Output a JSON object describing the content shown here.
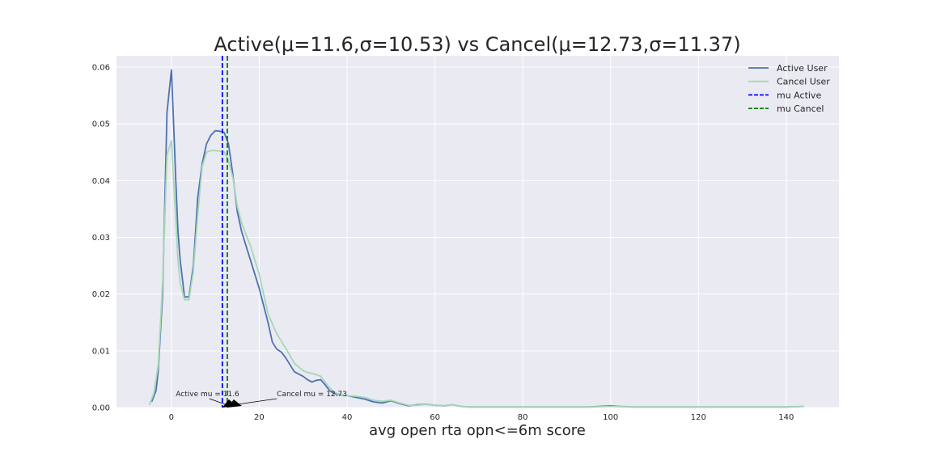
{
  "chart_data": {
    "type": "line",
    "title": "Active(μ=11.6,σ=10.53) vs Cancel(μ=12.73,σ=11.37)",
    "xlabel": "avg open rta opn<=6m score",
    "ylabel": "",
    "xlim": [
      -12.5,
      152
    ],
    "ylim": [
      0,
      0.062
    ],
    "xticks": [
      0,
      20,
      40,
      60,
      80,
      100,
      120,
      140
    ],
    "yticks": [
      0.0,
      0.01,
      0.02,
      0.03,
      0.04,
      0.05,
      0.06
    ],
    "grid": true,
    "legend_position": "top-right",
    "series": [
      {
        "name": "Active User",
        "color": "#4c72b0",
        "style": "solid",
        "x": [
          -4.5,
          -3.5,
          -3,
          -2,
          -1,
          0,
          0.5,
          1,
          1.5,
          2,
          3,
          4,
          5,
          6,
          7,
          8,
          9,
          10,
          11,
          12,
          13,
          14,
          15,
          16,
          17,
          18,
          20,
          22,
          23,
          24,
          25,
          26,
          28,
          30,
          31,
          32,
          33,
          34,
          35,
          36,
          37,
          38,
          40,
          42,
          44,
          46,
          48,
          50,
          52,
          54,
          56,
          58,
          60,
          62,
          64,
          66,
          68,
          70,
          75,
          80,
          85,
          90,
          95,
          100,
          102,
          105,
          110,
          115,
          120,
          125,
          130,
          135,
          140,
          144
        ],
        "y": [
          0.001,
          0.003,
          0.0065,
          0.02,
          0.052,
          0.0595,
          0.05,
          0.04,
          0.031,
          0.026,
          0.0195,
          0.0195,
          0.025,
          0.037,
          0.043,
          0.0465,
          0.048,
          0.0488,
          0.0487,
          0.0485,
          0.0465,
          0.041,
          0.0345,
          0.031,
          0.0285,
          0.026,
          0.021,
          0.015,
          0.0115,
          0.0103,
          0.0098,
          0.0088,
          0.0063,
          0.0055,
          0.0049,
          0.0045,
          0.0048,
          0.0049,
          0.004,
          0.003,
          0.0025,
          0.0023,
          0.0021,
          0.0018,
          0.0015,
          0.001,
          0.0008,
          0.0012,
          0.0007,
          0.0003,
          0.0005,
          0.0006,
          0.0004,
          0.0003,
          0.0005,
          0.0002,
          0.0001,
          0.0001,
          0.0001,
          0.0001,
          0.0001,
          0.0001,
          0.0001,
          0.0003,
          0.0002,
          0.0001,
          0.0001,
          0.0001,
          0.0001,
          0.0001,
          0.0001,
          0.0001,
          0.0001,
          0.0002
        ]
      },
      {
        "name": "Cancel User",
        "color": "#a6d7b4",
        "style": "solid",
        "x": [
          -5,
          -4,
          -3,
          -2,
          -1,
          0,
          0.5,
          1,
          1.5,
          2,
          3,
          4,
          5,
          6,
          7,
          8,
          9,
          10,
          11,
          12,
          13,
          14,
          15,
          16,
          17,
          18,
          20,
          22,
          24,
          26,
          28,
          30,
          31,
          32,
          33,
          34,
          35,
          36,
          37,
          38,
          40,
          42,
          44,
          46,
          48,
          50,
          52,
          54,
          56,
          58,
          60,
          62,
          64,
          66,
          68,
          70,
          75,
          80,
          85,
          90,
          95,
          100,
          105,
          110,
          120,
          130,
          140,
          144
        ],
        "y": [
          0.0005,
          0.0025,
          0.0075,
          0.022,
          0.0445,
          0.047,
          0.04,
          0.033,
          0.026,
          0.022,
          0.019,
          0.019,
          0.024,
          0.034,
          0.0425,
          0.045,
          0.0453,
          0.0453,
          0.0452,
          0.0451,
          0.0435,
          0.0405,
          0.0355,
          0.0325,
          0.0305,
          0.0285,
          0.0235,
          0.0165,
          0.013,
          0.0105,
          0.0078,
          0.0065,
          0.0062,
          0.006,
          0.0058,
          0.0055,
          0.0045,
          0.0035,
          0.0028,
          0.0024,
          0.0021,
          0.002,
          0.0018,
          0.0013,
          0.0011,
          0.0013,
          0.0008,
          0.0004,
          0.0004,
          0.0006,
          0.0004,
          0.0003,
          0.0005,
          0.0002,
          0.0001,
          0.0001,
          0.0001,
          0.0001,
          0.0001,
          0.0001,
          0.0001,
          0.0002,
          0.0001,
          0.0001,
          0.0001,
          0.0001,
          0.0001,
          0.0002
        ]
      },
      {
        "name": "mu Active",
        "color": "#0000ff",
        "style": "dashed",
        "vline": 11.6
      },
      {
        "name": "mu Cancel",
        "color": "#008000",
        "style": "dashed",
        "vline": 12.73
      }
    ],
    "annotations": [
      {
        "text": "Active mu = 11.6",
        "target": [
          11.6,
          0
        ],
        "text_pos": [
          1,
          0.002
        ]
      },
      {
        "text": "Cancel mu = 12.73",
        "target": [
          12.73,
          0
        ],
        "text_pos": [
          24,
          0.002
        ]
      }
    ],
    "colors": {
      "plot_background": "#eaeaf2",
      "grid": "#ffffff",
      "text": "#262626"
    }
  }
}
